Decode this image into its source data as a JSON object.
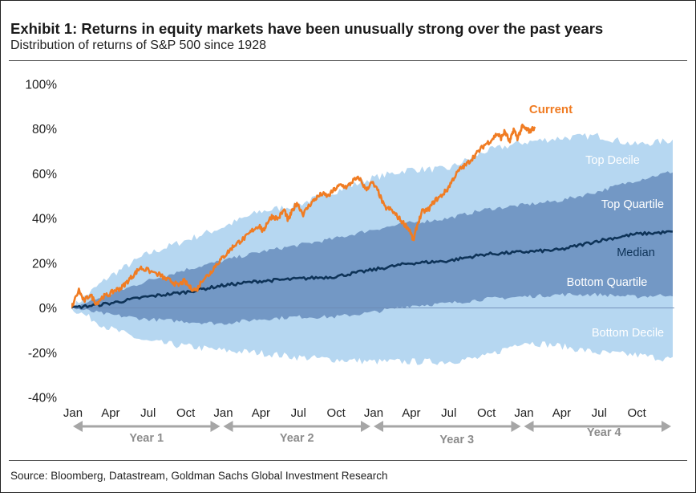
{
  "exhibit": {
    "title": "Exhibit 1: Returns in equity markets have been unusually strong over the past years",
    "subtitle": "Distribution of returns of S&P 500 since 1928",
    "source": "Source: Bloomberg, Datastream, Goldman Sachs Global Investment Research"
  },
  "colors": {
    "decile_band": "#b6d7f1",
    "quartile_band": "#7398c5",
    "median_line": "#0e3358",
    "current_line": "#f07c23",
    "band_label": "#ffffff",
    "axis": "#222222",
    "arrow": "#a6a6a6",
    "year_label": "#8c8c8c"
  },
  "chart_data": {
    "type": "area",
    "x_unit": "months since start (0 = Jan Year 1)",
    "xlim": [
      0,
      48
    ],
    "ylim": [
      -40,
      100
    ],
    "y_ticks": [
      -40,
      -20,
      0,
      20,
      40,
      60,
      80,
      100
    ],
    "y_tick_labels": [
      "-40%",
      "-20%",
      "0%",
      "20%",
      "40%",
      "60%",
      "80%",
      "100%"
    ],
    "x_ticks": [
      0,
      3,
      6,
      9,
      12,
      15,
      18,
      21,
      24,
      27,
      30,
      33,
      36,
      39,
      42,
      45
    ],
    "x_tick_labels": [
      "Jan",
      "Apr",
      "Jul",
      "Oct",
      "Jan",
      "Apr",
      "Jul",
      "Oct",
      "Jan",
      "Apr",
      "Jul",
      "Oct",
      "Jan",
      "Apr",
      "Jul",
      "Oct"
    ],
    "years": [
      {
        "label": "Year 1",
        "start": 0,
        "end": 12
      },
      {
        "label": "Year 2",
        "start": 12,
        "end": 24
      },
      {
        "label": "Year 3",
        "start": 24,
        "end": 36
      },
      {
        "label": "Year 4",
        "start": 36,
        "end": 48
      }
    ],
    "x": [
      0,
      3,
      6,
      9,
      12,
      15,
      18,
      21,
      24,
      27,
      30,
      33,
      36,
      39,
      42,
      45,
      48
    ],
    "bands": [
      {
        "name": "Top Decile / Bottom Decile",
        "upper_label": "Top Decile",
        "lower_label": "Bottom Decile",
        "upper": [
          0,
          14,
          24,
          30,
          36,
          43,
          46,
          52,
          58,
          62,
          62,
          70,
          74,
          76,
          77,
          73,
          75
        ],
        "lower": [
          0,
          -9,
          -15,
          -17,
          -19,
          -20,
          -22,
          -23,
          -24,
          -24,
          -24,
          -22,
          -15,
          -17,
          -20,
          -21,
          -23
        ]
      },
      {
        "name": "Top Quartile / Bottom Quartile",
        "upper_label": "Top Quartile",
        "lower_label": "Bottom Quartile",
        "upper": [
          0,
          6,
          12,
          17,
          21,
          25,
          28,
          31,
          35,
          38,
          40,
          44,
          46,
          48,
          52,
          57,
          61
        ],
        "lower": [
          0,
          -3,
          -5,
          -6,
          -7,
          -5,
          -4,
          -4,
          -2,
          1,
          2,
          4,
          5,
          6,
          6,
          5,
          6
        ]
      }
    ],
    "series": [
      {
        "name": "Median",
        "label": "Median",
        "x": [
          0,
          3,
          6,
          9,
          12,
          15,
          18,
          21,
          24,
          27,
          30,
          33,
          36,
          39,
          42,
          45,
          48
        ],
        "values": [
          0,
          2,
          5,
          7,
          10,
          12,
          13,
          14,
          17,
          20,
          21,
          24,
          25,
          26,
          30,
          33,
          34
        ]
      },
      {
        "name": "Current",
        "label": "Current",
        "x": [
          0,
          0.6,
          1,
          1.5,
          2,
          2.5,
          3,
          3.5,
          4,
          4.5,
          5,
          5.5,
          6,
          7,
          7.5,
          8,
          8.5,
          9,
          9.5,
          10,
          10.5,
          11,
          11.5,
          12,
          12.5,
          13,
          13.5,
          14,
          14.5,
          15,
          15.3,
          15.6,
          16,
          16.5,
          17,
          17.3,
          17.6,
          18,
          18.5,
          19,
          19.5,
          20,
          20.5,
          21,
          21.5,
          22,
          22.5,
          23,
          23.5,
          24,
          24.5,
          25,
          25.5,
          26,
          26.5,
          27,
          27.3,
          27.6,
          28,
          28.5,
          29,
          29.5,
          30,
          30.5,
          31,
          31.5,
          32,
          32.5,
          33,
          33.5,
          34,
          34.3,
          34.6,
          35,
          35.3,
          35.6,
          36,
          36.3,
          36.6,
          37
        ],
        "values": [
          0,
          8,
          3,
          6,
          2,
          5,
          6,
          8,
          9,
          12,
          15,
          18,
          17,
          15,
          13,
          12,
          10,
          12,
          9,
          8,
          13,
          15,
          19,
          22,
          25,
          28,
          30,
          32,
          35,
          37,
          34,
          38,
          41,
          40,
          44,
          39,
          43,
          47,
          42,
          46,
          49,
          51,
          50,
          53,
          55,
          54,
          57,
          58,
          53,
          56,
          52,
          45,
          44,
          41,
          38,
          35,
          30,
          37,
          43,
          44,
          48,
          50,
          53,
          58,
          62,
          64,
          67,
          70,
          73,
          75,
          78,
          76,
          79,
          74,
          80,
          76,
          81,
          80,
          79,
          81
        ]
      }
    ]
  }
}
